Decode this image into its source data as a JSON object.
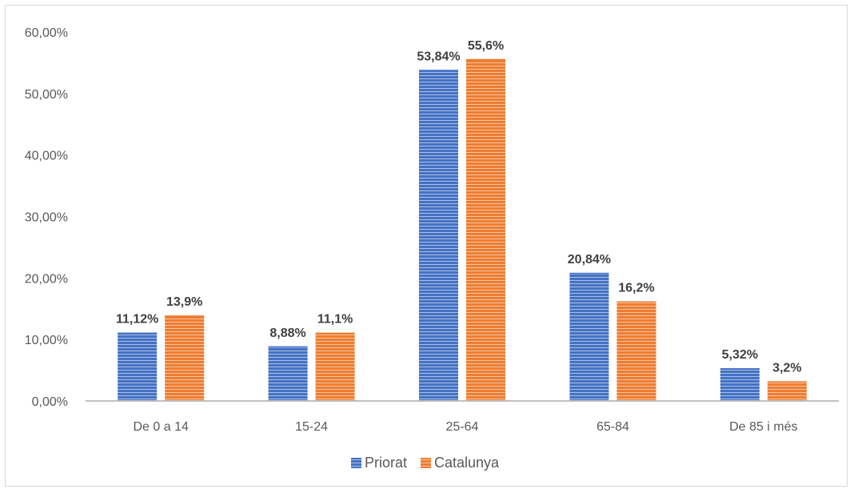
{
  "colors": {
    "priorat": "#4472C4",
    "catalunya": "#ED7D31",
    "axis": "#bfbfbf",
    "text": "#595959"
  },
  "chart_data": {
    "type": "bar",
    "title": "",
    "xlabel": "",
    "ylabel": "",
    "ylim": [
      0,
      60
    ],
    "y_ticks": [
      "0,00%",
      "10,00%",
      "20,00%",
      "30,00%",
      "40,00%",
      "50,00%",
      "60,00%"
    ],
    "y_tick_values": [
      0,
      10,
      20,
      30,
      40,
      50,
      60
    ],
    "grid": false,
    "legend_position": "bottom",
    "categories": [
      "De 0 a 14",
      "15-24",
      "25-64",
      "65-84",
      "De 85 i més"
    ],
    "series": [
      {
        "name": "Priorat",
        "values": [
          11.12,
          8.88,
          53.84,
          20.84,
          5.32
        ],
        "labels": [
          "11,12%",
          "8,88%",
          "53,84%",
          "20,84%",
          "5,32%"
        ]
      },
      {
        "name": "Catalunya",
        "values": [
          13.9,
          11.1,
          55.6,
          16.2,
          3.2
        ],
        "labels": [
          "13,9%",
          "11,1%",
          "55,6%",
          "16,2%",
          "3,2%"
        ]
      }
    ]
  }
}
